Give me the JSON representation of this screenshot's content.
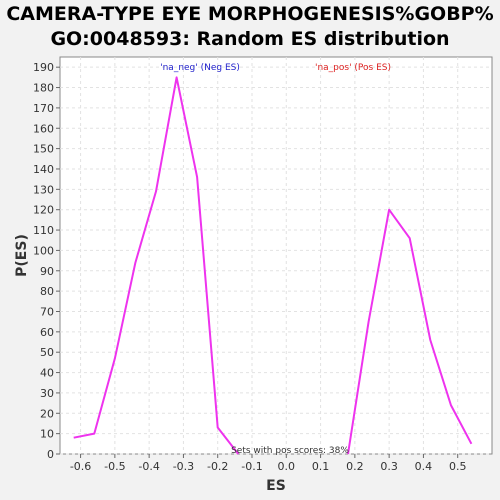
{
  "chart_data": {
    "type": "line",
    "title_line1": "CAMERA-TYPE EYE MORPHOGENESIS%GOBP%",
    "title_line2": "GO:0048593: Random ES distribution",
    "xlabel": "ES",
    "ylabel": "P(ES)",
    "xlim": [
      -0.66,
      0.6
    ],
    "ylim": [
      0,
      195
    ],
    "xticks": [
      -0.6,
      -0.5,
      -0.4,
      -0.3,
      -0.2,
      -0.1,
      0.0,
      0.1,
      0.2,
      0.3,
      0.4,
      0.5
    ],
    "xtick_labels": [
      "-0.6",
      "-0.5",
      "-0.4",
      "-0.3",
      "-0.2",
      "-0.1",
      "0.0",
      "0.1",
      "0.2",
      "0.3",
      "0.4",
      "0.5"
    ],
    "yticks": [
      0,
      10,
      20,
      30,
      40,
      50,
      60,
      70,
      80,
      90,
      100,
      110,
      120,
      130,
      140,
      150,
      160,
      170,
      180,
      190
    ],
    "grid": true,
    "legend": [
      {
        "label": "'na_neg' (Neg ES)",
        "color": "#2222cc"
      },
      {
        "label": "'na_pos' (Pos ES)",
        "color": "#dd2222"
      }
    ],
    "annotation": "Sets with pos scores: 38%",
    "line_color": "#ee33ee",
    "series": [
      {
        "x": [
          -0.62,
          -0.56,
          -0.5,
          -0.44,
          -0.38,
          -0.32,
          -0.26,
          -0.2,
          -0.14
        ],
        "values": [
          8,
          10,
          47,
          94,
          129,
          185,
          136,
          13,
          0
        ]
      },
      {
        "x": [
          0.18,
          0.24,
          0.3,
          0.36,
          0.42,
          0.48,
          0.54
        ],
        "values": [
          0,
          65,
          120,
          106,
          56,
          24,
          5
        ]
      }
    ]
  }
}
